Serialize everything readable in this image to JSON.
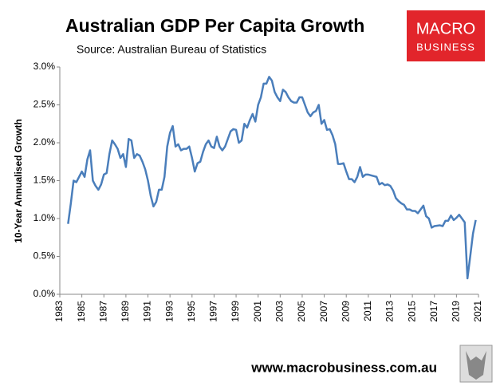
{
  "chart_data": {
    "type": "line",
    "title": "Australian GDP Per Capita Growth",
    "subtitle": "Source: Australian Bureau of Statistics",
    "ylabel": "10-Year Annualised Growth",
    "logo": [
      "MACRO",
      "BUSINESS"
    ],
    "footer": "www.macrobusiness.com.au",
    "xlim": [
      1983,
      2021
    ],
    "xticks": [
      1983,
      1985,
      1987,
      1989,
      1991,
      1993,
      1995,
      1997,
      1999,
      2001,
      2003,
      2005,
      2007,
      2009,
      2011,
      2013,
      2015,
      2017,
      2019,
      2021
    ],
    "ylim": [
      0,
      3
    ],
    "yticks": [
      {
        "value": 0,
        "label": "0.0%"
      },
      {
        "value": 0.5,
        "label": "0.5%"
      },
      {
        "value": 1,
        "label": "1.0%"
      },
      {
        "value": 1.5,
        "label": "1.5%"
      },
      {
        "value": 2,
        "label": "2.0%"
      },
      {
        "value": 2.5,
        "label": "2.5%"
      },
      {
        "value": 3,
        "label": "3.0%"
      }
    ],
    "grid": false,
    "color": "#4a7ebb",
    "x": [
      1983.75,
      1984,
      1984.25,
      1984.5,
      1984.75,
      1985,
      1985.25,
      1985.5,
      1985.75,
      1986,
      1986.25,
      1986.5,
      1986.75,
      1987,
      1987.25,
      1987.5,
      1987.75,
      1988,
      1988.25,
      1988.5,
      1988.75,
      1989,
      1989.25,
      1989.5,
      1989.75,
      1990,
      1990.25,
      1990.5,
      1990.75,
      1991,
      1991.25,
      1991.5,
      1991.75,
      1992,
      1992.25,
      1992.5,
      1992.75,
      1993,
      1993.25,
      1993.5,
      1993.75,
      1994,
      1994.25,
      1994.5,
      1994.75,
      1995,
      1995.25,
      1995.5,
      1995.75,
      1996,
      1996.25,
      1996.5,
      1996.75,
      1997,
      1997.25,
      1997.5,
      1997.75,
      1998,
      1998.25,
      1998.5,
      1998.75,
      1999,
      1999.25,
      1999.5,
      1999.75,
      2000,
      2000.25,
      2000.5,
      2000.75,
      2001,
      2001.25,
      2001.5,
      2001.75,
      2002,
      2002.25,
      2002.5,
      2002.75,
      2003,
      2003.25,
      2003.5,
      2003.75,
      2004,
      2004.25,
      2004.5,
      2004.75,
      2005,
      2005.25,
      2005.5,
      2005.75,
      2006,
      2006.25,
      2006.5,
      2006.75,
      2007,
      2007.25,
      2007.5,
      2007.75,
      2008,
      2008.25,
      2008.5,
      2008.75,
      2009,
      2009.25,
      2009.5,
      2009.75,
      2010,
      2010.25,
      2010.5,
      2010.75,
      2011,
      2011.5,
      2011.75,
      2012,
      2012.25,
      2012.5,
      2012.75,
      2013,
      2013.25,
      2013.5,
      2013.75,
      2014,
      2014.25,
      2014.5,
      2014.75,
      2015,
      2015.25,
      2015.5,
      2015.75,
      2016,
      2016.25,
      2016.5,
      2016.75,
      2017,
      2017.5,
      2017.75,
      2018,
      2018.25,
      2018.5,
      2018.75,
      2019,
      2019.25,
      2019.5,
      2019.75,
      2020,
      2020.25,
      2020.5,
      2020.75
    ],
    "values": [
      0.93,
      1.2,
      1.5,
      1.48,
      1.55,
      1.62,
      1.55,
      1.78,
      1.9,
      1.5,
      1.43,
      1.38,
      1.45,
      1.58,
      1.6,
      1.85,
      2.03,
      1.98,
      1.92,
      1.8,
      1.85,
      1.68,
      2.05,
      2.03,
      1.8,
      1.85,
      1.83,
      1.75,
      1.65,
      1.5,
      1.3,
      1.16,
      1.22,
      1.38,
      1.38,
      1.55,
      1.95,
      2.13,
      2.22,
      1.95,
      1.98,
      1.9,
      1.92,
      1.92,
      1.95,
      1.8,
      1.62,
      1.73,
      1.75,
      1.88,
      1.98,
      2.03,
      1.95,
      1.93,
      2.08,
      1.95,
      1.9,
      1.95,
      2.05,
      2.15,
      2.18,
      2.17,
      2.0,
      2.03,
      2.25,
      2.2,
      2.3,
      2.38,
      2.28,
      2.5,
      2.6,
      2.78,
      2.78,
      2.87,
      2.82,
      2.67,
      2.6,
      2.55,
      2.7,
      2.67,
      2.6,
      2.55,
      2.53,
      2.53,
      2.6,
      2.6,
      2.5,
      2.4,
      2.35,
      2.4,
      2.42,
      2.5,
      2.25,
      2.3,
      2.17,
      2.18,
      2.1,
      1.98,
      1.72,
      1.72,
      1.73,
      1.62,
      1.52,
      1.52,
      1.48,
      1.55,
      1.68,
      1.55,
      1.58,
      1.58,
      1.56,
      1.55,
      1.45,
      1.47,
      1.44,
      1.45,
      1.43,
      1.37,
      1.27,
      1.23,
      1.2,
      1.18,
      1.12,
      1.12,
      1.1,
      1.1,
      1.07,
      1.12,
      1.17,
      1.03,
      1.0,
      0.88,
      0.9,
      0.91,
      0.9,
      0.97,
      0.97,
      1.04,
      0.98,
      1.01,
      1.05,
      1.0,
      0.95,
      0.21,
      0.5,
      0.8,
      0.98
    ]
  }
}
